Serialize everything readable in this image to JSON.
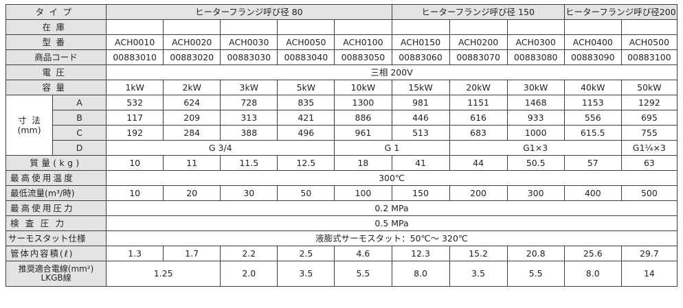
{
  "labels": {
    "type": "タイプ",
    "stock": "在庫",
    "model": "型番",
    "code": "商品コード",
    "voltage": "電圧",
    "capacity": "容量",
    "dims": "寸法",
    "dims_unit": "(mm)",
    "weight": "質量(kg)",
    "max_temp": "最高使用温度",
    "min_flow": "最低流量(m³/時)",
    "max_pressure": "最高使用圧力",
    "test_pressure": "検査圧力",
    "thermostat": "サーモスタット仕様",
    "volume": "管体内容積(ℓ)",
    "wire_line1": "推奨適合電線(mm²)",
    "wire_line2": "LKGB線"
  },
  "groups": [
    {
      "label": "ヒーターフランジ呼び径 80"
    },
    {
      "label": "ヒーターフランジ呼び径 150"
    },
    {
      "label": "ヒーターフランジ呼び径200"
    }
  ],
  "stock": [
    "",
    "",
    "",
    "",
    "",
    "",
    "",
    "",
    "",
    ""
  ],
  "models": [
    "ACH0010",
    "ACH0020",
    "ACH0030",
    "ACH0050",
    "ACH0100",
    "ACH0150",
    "ACH0200",
    "ACH0300",
    "ACH0400",
    "ACH0500"
  ],
  "codes": [
    "00883010",
    "00883020",
    "00883030",
    "00883040",
    "00883050",
    "00883060",
    "00883070",
    "00883080",
    "00883090",
    "00883100"
  ],
  "voltage": "三相 200V",
  "capacity": [
    "1kW",
    "2kW",
    "3kW",
    "5kW",
    "10kW",
    "15kW",
    "20kW",
    "30kW",
    "40kW",
    "50kW"
  ],
  "dims": {
    "A": {
      "label": "A",
      "values": [
        "532",
        "624",
        "728",
        "835",
        "1300",
        "981",
        "1151",
        "1468",
        "1153",
        "1292"
      ]
    },
    "B": {
      "label": "B",
      "values": [
        "117",
        "209",
        "313",
        "421",
        "886",
        "446",
        "616",
        "933",
        "556",
        "695"
      ]
    },
    "C": {
      "label": "C",
      "values": [
        "192",
        "284",
        "388",
        "496",
        "961",
        "513",
        "683",
        "1000",
        "615.5",
        "755"
      ]
    },
    "D": {
      "label": "D",
      "values": [
        "G 3/4",
        "G 1",
        "G1×3",
        "G1¼×3"
      ]
    }
  },
  "weight": [
    "10",
    "11",
    "11.5",
    "12.5",
    "18",
    "41",
    "44",
    "50.5",
    "57",
    "63"
  ],
  "max_temp": "300℃",
  "min_flow": [
    "10",
    "20",
    "30",
    "50",
    "100",
    "150",
    "200",
    "300",
    "400",
    "500"
  ],
  "max_pressure": "0.2 MPa",
  "test_pressure": "0.5 MPa",
  "thermostat": "液膨式サーモスタット：50℃～ 320℃",
  "volume": [
    "1.3",
    "1.7",
    "2.2",
    "2.5",
    "4.6",
    "12.3",
    "15.2",
    "20.8",
    "25.6",
    "29.7"
  ],
  "wire": [
    "1.25",
    "2.0",
    "3.5",
    "5.5",
    "8.0",
    "3.5",
    "5.5",
    "8.0",
    "14"
  ]
}
